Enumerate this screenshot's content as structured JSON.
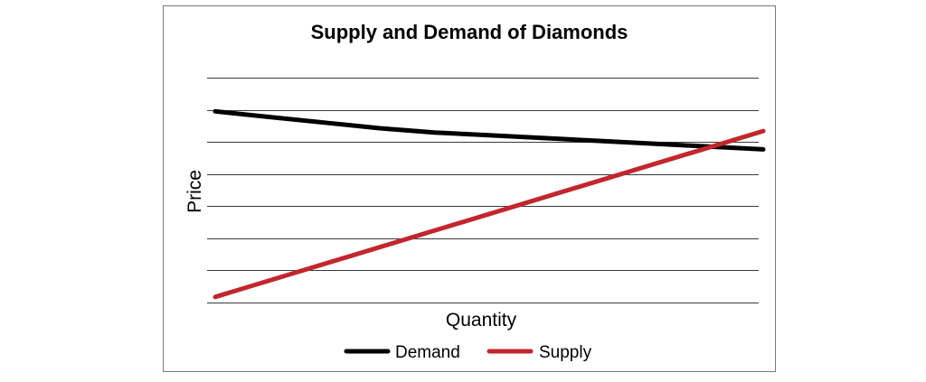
{
  "chart_data": {
    "type": "line",
    "title": "Supply and Demand of Diamonds",
    "xlabel": "Quantity",
    "ylabel": "Price",
    "grid": true,
    "y_gridlines": 8,
    "xlim": [
      0,
      10
    ],
    "ylim": [
      0,
      8
    ],
    "legend_position": "bottom-center",
    "series": [
      {
        "name": "Demand",
        "color": "#000000",
        "x": [
          0,
          1,
          2,
          3,
          4,
          5,
          6,
          7,
          8,
          9,
          10
        ],
        "y": [
          6.8,
          6.6,
          6.4,
          6.2,
          6.05,
          5.95,
          5.85,
          5.75,
          5.65,
          5.55,
          5.45
        ]
      },
      {
        "name": "Supply",
        "color": "#c1272d",
        "x": [
          0,
          10
        ],
        "y": [
          0.2,
          6.1
        ]
      }
    ]
  }
}
